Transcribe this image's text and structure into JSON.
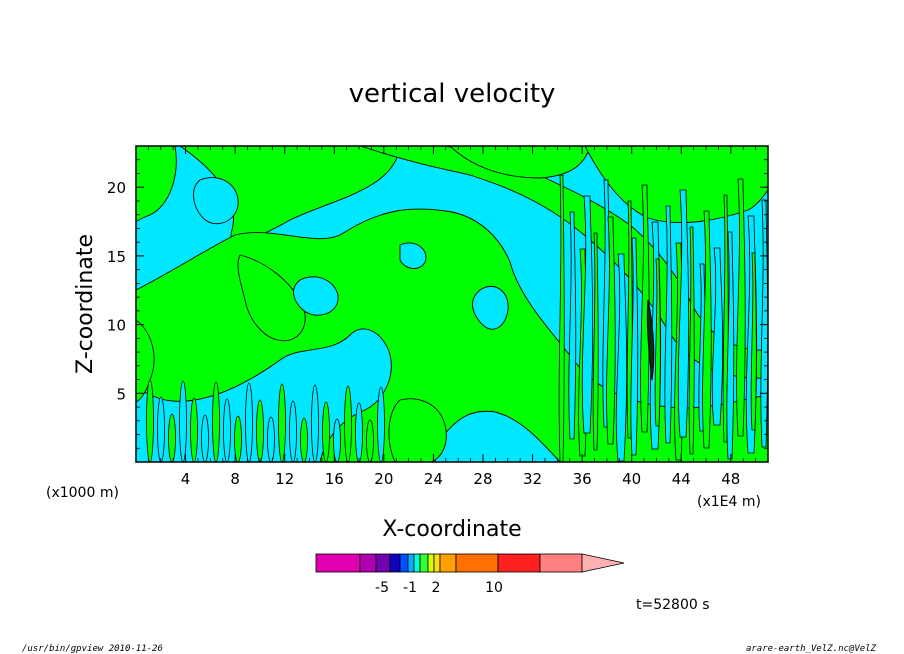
{
  "chart_data": {
    "type": "heatmap",
    "title": "vertical velocity",
    "xlabel": "X-coordinate",
    "ylabel": "Z-coordinate",
    "x_unit_left": "(x1000 m)",
    "x_unit_right": "(x1E4 m)",
    "x_ticks": [
      4,
      8,
      12,
      16,
      20,
      24,
      28,
      32,
      36,
      40,
      44,
      48
    ],
    "y_ticks": [
      5,
      10,
      15,
      20
    ],
    "xlim": [
      0,
      51
    ],
    "ylim": [
      0,
      23
    ],
    "time_label": "t=52800 s",
    "colorbar": {
      "colors": [
        "#e000b0",
        "#b000b0",
        "#7000b0",
        "#1000c0",
        "#0050ff",
        "#00b0ff",
        "#00ffd0",
        "#30ff30",
        "#d0ff00",
        "#ffe000",
        "#ffa000",
        "#ff7000",
        "#ff2020",
        "#ff8080",
        "#ffb0b0"
      ],
      "tick_labels": [
        "-5",
        "-1",
        "2",
        "10"
      ]
    },
    "fill_colors": {
      "positive": "#00ff00",
      "negative": "#00e8ff"
    }
  },
  "footer": {
    "left": "/usr/bin/gpview   2010-11-26",
    "right": "arare-earth_VelZ.nc@VelZ"
  }
}
